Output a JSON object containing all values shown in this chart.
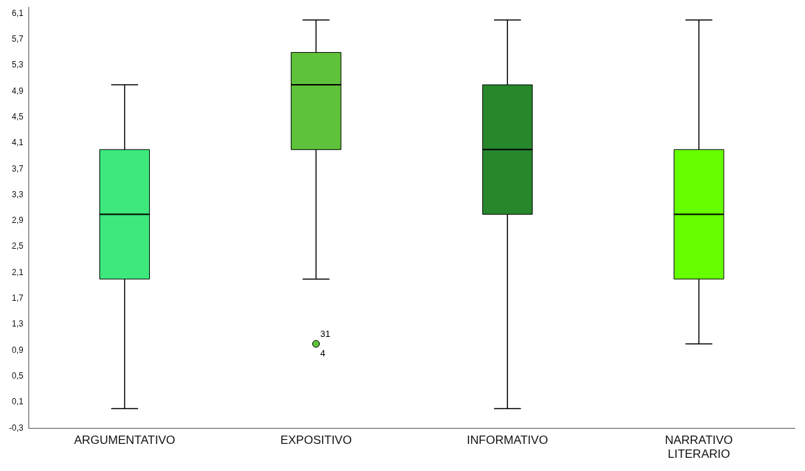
{
  "chart_data": {
    "type": "box",
    "categories": [
      "ARGUMENTATIVO",
      "EXPOSITIVO",
      "INFORMATIVO",
      "NARRATIVO LITERARIO"
    ],
    "boxes": [
      {
        "low": 0,
        "q1": 2,
        "median": 3,
        "q3": 4,
        "high": 5
      },
      {
        "low": 2,
        "q1": 4,
        "median": 5,
        "q3": 5.5,
        "high": 6,
        "outliers": [
          1
        ]
      },
      {
        "low": 0,
        "q1": 3,
        "median": 4,
        "q3": 5,
        "high": 6
      },
      {
        "low": 1,
        "q1": 2,
        "median": 3,
        "q3": 4,
        "high": 6
      }
    ],
    "colors": [
      "#3de87c",
      "#5ec23a",
      "#26872b",
      "#66ff00"
    ],
    "ylim": [
      -0.3,
      6.2
    ],
    "yticks": [
      {
        "value": -0.3,
        "label": "-0,3"
      },
      {
        "value": 0.1,
        "label": "0,1"
      },
      {
        "value": 0.5,
        "label": "0,5"
      },
      {
        "value": 0.9,
        "label": "0,9"
      },
      {
        "value": 1.3,
        "label": "1,3"
      },
      {
        "value": 1.7,
        "label": "1,7"
      },
      {
        "value": 2.1,
        "label": "2,1"
      },
      {
        "value": 2.5,
        "label": "2,5"
      },
      {
        "value": 2.9,
        "label": "2,9"
      },
      {
        "value": 3.3,
        "label": "3,3"
      },
      {
        "value": 3.7,
        "label": "3,7"
      },
      {
        "value": 4.1,
        "label": "4,1"
      },
      {
        "value": 4.5,
        "label": "4,5"
      },
      {
        "value": 4.9,
        "label": "4,9"
      },
      {
        "value": 5.3,
        "label": "5,3"
      },
      {
        "value": 5.7,
        "label": "5,7"
      },
      {
        "value": 6.1,
        "label": "6,1"
      }
    ],
    "annotations": [
      "31",
      "4"
    ],
    "grid": false,
    "legend": false
  }
}
